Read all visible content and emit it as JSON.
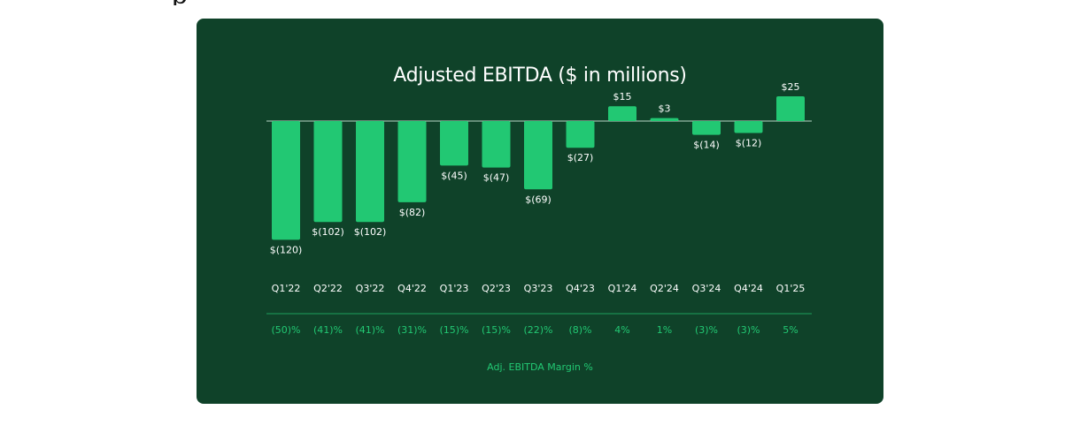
{
  "header": {
    "cut_glyph": "p"
  },
  "chart_data": {
    "type": "bar",
    "title": "Adjusted EBITDA ($ in millions)",
    "categories": [
      "Q1'22",
      "Q2'22",
      "Q3'22",
      "Q4'22",
      "Q1'23",
      "Q2'23",
      "Q3'23",
      "Q4'23",
      "Q1'24",
      "Q2'24",
      "Q3'24",
      "Q4'24",
      "Q1'25"
    ],
    "values": [
      -120,
      -102,
      -102,
      -82,
      -45,
      -47,
      -69,
      -27,
      15,
      3,
      -14,
      -12,
      25
    ],
    "value_labels": [
      "$(120)",
      "$(102)",
      "$(102)",
      "$(82)",
      "$(45)",
      "$(47)",
      "$(69)",
      "$(27)",
      "$15",
      "$3",
      "$(14)",
      "$(12)",
      "$25"
    ],
    "margins": [
      "(50)%",
      "(41)%",
      "(41)%",
      "(31)%",
      "(15)%",
      "(15)%",
      "(22)%",
      "(8)%",
      "4%",
      "1%",
      "(3)%",
      "(3)%",
      "5%"
    ],
    "margin_label": "Adj. EBITDA Margin %",
    "colors": {
      "background": "#0f4229",
      "bar": "#22c873",
      "text": "#ffffff",
      "accent": "#22c873",
      "axis": "#b8d8c6"
    }
  }
}
